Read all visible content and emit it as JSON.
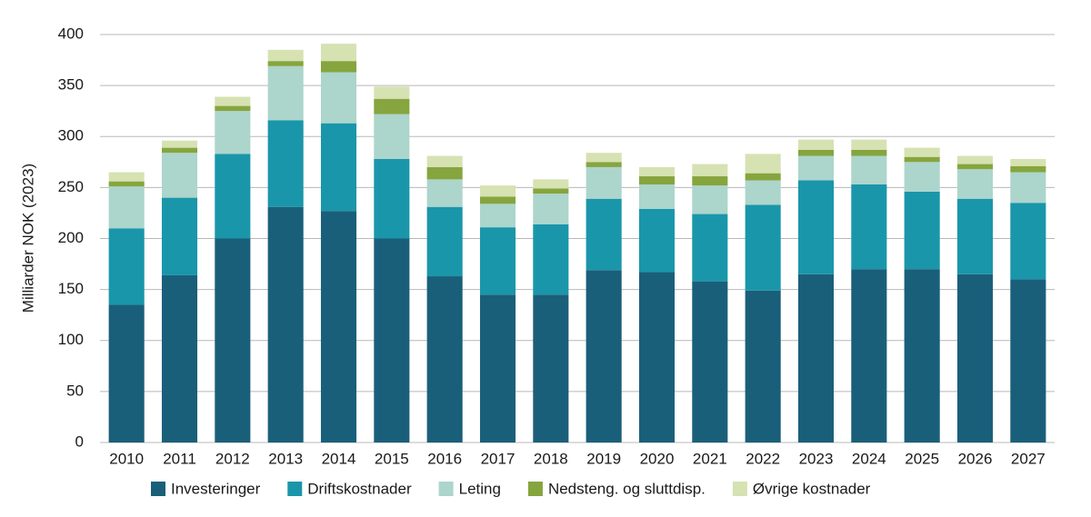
{
  "chart_data": {
    "type": "stacked_bar",
    "y_label": "Milliarder NOK (2023)",
    "categories": [
      "2010",
      "2011",
      "2012",
      "2013",
      "2014",
      "2015",
      "2016",
      "2017",
      "2018",
      "2019",
      "2020",
      "2021",
      "2022",
      "2023",
      "2024",
      "2025",
      "2026",
      "2027"
    ],
    "series": [
      {
        "name": "Investeringer",
        "color": "#1a5f7a",
        "values": [
          135,
          164,
          200,
          231,
          227,
          200,
          163,
          145,
          145,
          169,
          167,
          158,
          149,
          165,
          170,
          170,
          165,
          160
        ]
      },
      {
        "name": "Driftskostnader",
        "color": "#1a96aa",
        "values": [
          75,
          76,
          83,
          85,
          86,
          78,
          68,
          66,
          69,
          70,
          62,
          66,
          84,
          92,
          83,
          76,
          74,
          75
        ]
      },
      {
        "name": "Leting",
        "color": "#acd5cc",
        "values": [
          41,
          44,
          42,
          53,
          50,
          44,
          27,
          23,
          30,
          31,
          24,
          28,
          24,
          24,
          28,
          29,
          29,
          30
        ]
      },
      {
        "name": "Nedsteng. og sluttdisp.",
        "color": "#86a53e",
        "values": [
          5,
          5,
          5,
          5,
          11,
          15,
          12,
          7,
          5,
          5,
          8,
          9,
          7,
          6,
          6,
          5,
          5,
          6
        ]
      },
      {
        "name": "Øvrige kostnader",
        "color": "#d6e2b2",
        "values": [
          9,
          7,
          9,
          11,
          17,
          12,
          11,
          11,
          9,
          9,
          9,
          12,
          19,
          10,
          10,
          9,
          8,
          7
        ]
      }
    ],
    "ylim": [
      0,
      400
    ],
    "yticks": [
      0,
      50,
      100,
      150,
      200,
      250,
      300,
      350,
      400
    ],
    "grid": true
  }
}
